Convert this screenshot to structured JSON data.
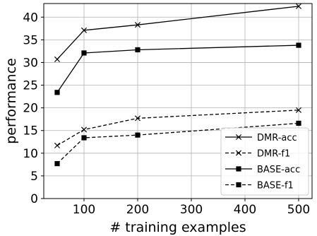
{
  "chart_data": {
    "type": "line",
    "xlabel": "# training examples",
    "ylabel": "performance",
    "xlim": [
      25,
      525
    ],
    "ylim": [
      0,
      43
    ],
    "xticks": [
      100,
      200,
      300,
      400,
      500
    ],
    "yticks": [
      0,
      5,
      10,
      15,
      20,
      25,
      30,
      35,
      40
    ],
    "grid": true,
    "legend_position": "bottom-right",
    "x": [
      50,
      100,
      200,
      500
    ],
    "series": [
      {
        "name": "DMR-acc",
        "values": [
          30.7,
          37.1,
          38.3,
          42.4
        ],
        "marker": "x",
        "linestyle": "solid",
        "color": "#000000"
      },
      {
        "name": "DMR-f1",
        "values": [
          11.7,
          15.2,
          17.7,
          19.5
        ],
        "marker": "x",
        "linestyle": "dashed",
        "color": "#000000"
      },
      {
        "name": "BASE-acc",
        "values": [
          23.4,
          32.1,
          32.8,
          33.8
        ],
        "marker": "square",
        "linestyle": "solid",
        "color": "#000000"
      },
      {
        "name": "BASE-f1",
        "values": [
          7.7,
          13.4,
          14.0,
          16.6
        ],
        "marker": "square",
        "linestyle": "dashed",
        "color": "#000000"
      }
    ]
  }
}
